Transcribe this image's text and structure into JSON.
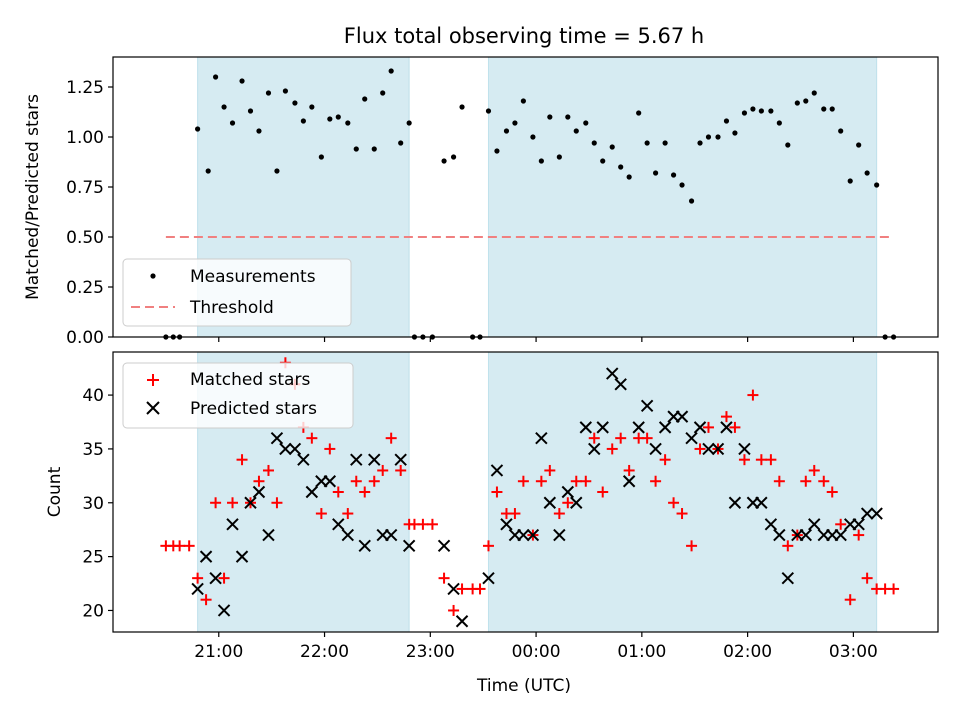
{
  "figure": {
    "title": "Flux total observing time = 5.67 h"
  },
  "chart_data": [
    {
      "type": "scatter",
      "panel": "top",
      "title": "Flux total observing time = 5.67 h",
      "xlabel": "",
      "ylabel": "Matched/Predicted stars",
      "x_unit": "hours_since_midnight_utc",
      "xlim": [
        20.0,
        27.8
      ],
      "ylim": [
        0.0,
        1.4
      ],
      "yticks": [
        0.0,
        0.25,
        0.5,
        0.75,
        1.0,
        1.25
      ],
      "ytick_labels": [
        "0.00",
        "0.25",
        "0.50",
        "0.75",
        "1.00",
        "1.25"
      ],
      "xticks": [
        21,
        22,
        23,
        24,
        25,
        26,
        27
      ],
      "show_xtick_labels": false,
      "grid": false,
      "legend": {
        "placement": "lower-left"
      },
      "shaded_spans": [
        [
          20.8,
          22.8
        ],
        [
          23.55,
          27.22
        ]
      ],
      "series": [
        {
          "name": "Measurements",
          "kind": "dots",
          "color": "#000000",
          "x": [
            20.5,
            20.57,
            20.63,
            20.8,
            20.9,
            20.97,
            21.05,
            21.13,
            21.22,
            21.3,
            21.38,
            21.47,
            21.55,
            21.63,
            21.72,
            21.8,
            21.88,
            21.97,
            22.05,
            22.13,
            22.22,
            22.3,
            22.38,
            22.47,
            22.55,
            22.63,
            22.72,
            22.8,
            22.85,
            22.93,
            23.02,
            23.13,
            23.22,
            23.3,
            23.4,
            23.47,
            23.55,
            23.63,
            23.72,
            23.8,
            23.88,
            23.97,
            24.05,
            24.13,
            24.22,
            24.3,
            24.38,
            24.47,
            24.55,
            24.63,
            24.72,
            24.8,
            24.88,
            24.97,
            25.05,
            25.13,
            25.22,
            25.3,
            25.38,
            25.47,
            25.55,
            25.63,
            25.72,
            25.8,
            25.88,
            25.97,
            26.05,
            26.13,
            26.22,
            26.3,
            26.38,
            26.47,
            26.55,
            26.63,
            26.72,
            26.8,
            26.88,
            26.97,
            27.05,
            27.13,
            27.22,
            27.3,
            27.38
          ],
          "y": [
            0.0,
            0.0,
            0.0,
            1.04,
            0.83,
            1.3,
            1.15,
            1.07,
            1.28,
            1.13,
            1.03,
            1.22,
            0.83,
            1.23,
            1.17,
            1.08,
            1.15,
            0.9,
            1.09,
            1.1,
            1.07,
            0.94,
            1.19,
            0.94,
            1.22,
            1.33,
            0.97,
            1.07,
            0.0,
            0.0,
            0.0,
            0.88,
            0.9,
            1.15,
            0.0,
            0.0,
            1.13,
            0.93,
            1.03,
            1.07,
            1.18,
            1.0,
            0.88,
            1.1,
            0.9,
            1.1,
            1.03,
            1.07,
            0.97,
            0.88,
            0.95,
            0.85,
            0.8,
            1.12,
            0.97,
            0.82,
            0.97,
            0.81,
            0.76,
            0.68,
            0.97,
            1.0,
            1.0,
            1.08,
            1.02,
            1.12,
            1.14,
            1.13,
            1.13,
            1.07,
            0.96,
            1.17,
            1.18,
            1.22,
            1.14,
            1.14,
            1.03,
            0.78,
            0.96,
            0.82,
            0.76,
            0.0,
            0.0
          ]
        },
        {
          "name": "Threshold",
          "kind": "dashed-line",
          "color": "#f08080",
          "x": [
            20.5,
            27.38
          ],
          "y": [
            0.5,
            0.5
          ]
        }
      ]
    },
    {
      "type": "scatter",
      "panel": "bottom",
      "xlabel": "Time (UTC)",
      "ylabel": "Count",
      "x_unit": "hours_since_midnight_utc",
      "xlim": [
        20.0,
        27.8
      ],
      "ylim": [
        18,
        44
      ],
      "yticks": [
        20,
        25,
        30,
        35,
        40
      ],
      "ytick_labels": [
        "20",
        "25",
        "30",
        "35",
        "40"
      ],
      "xticks": [
        21,
        22,
        23,
        24,
        25,
        26,
        27
      ],
      "xtick_labels": [
        "21:00",
        "22:00",
        "23:00",
        "00:00",
        "01:00",
        "02:00",
        "03:00"
      ],
      "grid": false,
      "legend": {
        "placement": "upper-left"
      },
      "shaded_spans": [
        [
          20.8,
          22.8
        ],
        [
          23.55,
          27.22
        ]
      ],
      "series": [
        {
          "name": "Matched stars",
          "kind": "plus",
          "color": "#ff0000",
          "x": [
            20.5,
            20.57,
            20.63,
            20.72,
            20.8,
            20.88,
            20.97,
            21.05,
            21.13,
            21.22,
            21.3,
            21.38,
            21.47,
            21.55,
            21.63,
            21.72,
            21.8,
            21.88,
            21.97,
            22.05,
            22.13,
            22.22,
            22.3,
            22.38,
            22.47,
            22.55,
            22.63,
            22.72,
            22.8,
            22.85,
            22.93,
            23.02,
            23.13,
            23.22,
            23.3,
            23.4,
            23.47,
            23.55,
            23.63,
            23.72,
            23.8,
            23.88,
            23.97,
            24.05,
            24.13,
            24.22,
            24.3,
            24.38,
            24.47,
            24.55,
            24.63,
            24.72,
            24.8,
            24.88,
            24.97,
            25.05,
            25.13,
            25.22,
            25.3,
            25.38,
            25.47,
            25.55,
            25.63,
            25.72,
            25.8,
            25.88,
            25.97,
            26.05,
            26.13,
            26.22,
            26.3,
            26.38,
            26.47,
            26.55,
            26.63,
            26.72,
            26.8,
            26.88,
            26.97,
            27.05,
            27.13,
            27.22,
            27.3,
            27.38
          ],
          "y": [
            26,
            26,
            26,
            26,
            23,
            21,
            30,
            23,
            30,
            34,
            30,
            32,
            33,
            30,
            43,
            41,
            37,
            36,
            29,
            35,
            31,
            29,
            32,
            31,
            32,
            33,
            36,
            33,
            28,
            28,
            28,
            28,
            23,
            20,
            22,
            22,
            22,
            26,
            31,
            29,
            29,
            32,
            27,
            32,
            33,
            29,
            30,
            32,
            32,
            36,
            31,
            35,
            36,
            33,
            36,
            36,
            32,
            34,
            30,
            29,
            26,
            35,
            37,
            35,
            38,
            37,
            34,
            40,
            34,
            34,
            32,
            26,
            27,
            32,
            33,
            32,
            31,
            28,
            21,
            27,
            23,
            22,
            22,
            22
          ]
        },
        {
          "name": "Predicted stars",
          "kind": "x",
          "color": "#000000",
          "x": [
            20.8,
            20.88,
            20.97,
            21.05,
            21.13,
            21.22,
            21.3,
            21.38,
            21.47,
            21.55,
            21.63,
            21.72,
            21.8,
            21.88,
            21.97,
            22.05,
            22.13,
            22.22,
            22.3,
            22.38,
            22.47,
            22.55,
            22.63,
            22.72,
            22.8,
            23.13,
            23.22,
            23.3,
            23.55,
            23.63,
            23.72,
            23.8,
            23.88,
            23.97,
            24.05,
            24.13,
            24.22,
            24.3,
            24.38,
            24.47,
            24.55,
            24.63,
            24.72,
            24.8,
            24.88,
            24.97,
            25.05,
            25.13,
            25.22,
            25.3,
            25.38,
            25.47,
            25.55,
            25.63,
            25.72,
            25.8,
            25.88,
            25.97,
            26.05,
            26.13,
            26.22,
            26.3,
            26.38,
            26.47,
            26.55,
            26.63,
            26.72,
            26.8,
            26.88,
            26.97,
            27.05,
            27.13,
            27.22
          ],
          "y": [
            22,
            25,
            23,
            20,
            28,
            25,
            30,
            31,
            27,
            36,
            35,
            35,
            34,
            31,
            32,
            32,
            28,
            27,
            34,
            26,
            34,
            27,
            27,
            34,
            26,
            26,
            22,
            19,
            23,
            33,
            28,
            27,
            27,
            27,
            36,
            30,
            27,
            31,
            30,
            37,
            35,
            37,
            42,
            41,
            32,
            37,
            39,
            35,
            37,
            38,
            38,
            36,
            37,
            35,
            35,
            37,
            30,
            35,
            30,
            30,
            28,
            27,
            23,
            27,
            27,
            28,
            27,
            27,
            27,
            28,
            28,
            29,
            29
          ]
        }
      ]
    }
  ]
}
